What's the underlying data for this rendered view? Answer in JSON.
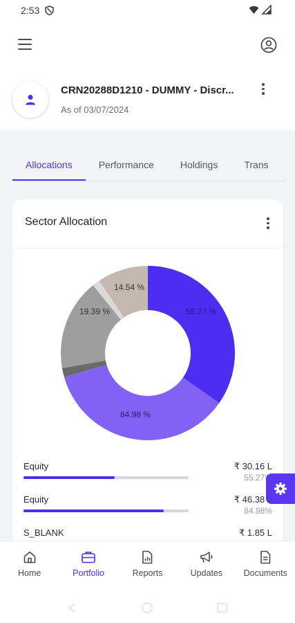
{
  "status_bar": {
    "time": "2:53"
  },
  "account": {
    "name": "CRN20288D1210 - DUMMY - Discr...",
    "as_of": "As of 03/07/2024"
  },
  "tabs": [
    {
      "label": "Allocations",
      "active": true
    },
    {
      "label": "Performance",
      "active": false
    },
    {
      "label": "Holdings",
      "active": false
    },
    {
      "label": "Trans",
      "active": false
    }
  ],
  "card": {
    "title": "Sector Allocation"
  },
  "chart_data": {
    "type": "pie",
    "variant": "donut",
    "slice_labels": [
      "55.27 %",
      "84.98 %",
      "19.39 %",
      "14.54 %"
    ],
    "colors": [
      "#4d2ef0",
      "#8461f5",
      "#9e9e9e",
      "#c4b8b0",
      "#6a6a6a",
      "#d9d9d9"
    ]
  },
  "allocations": [
    {
      "name": "Equity",
      "amount": "₹ 30.16 L",
      "percent": "55.27%",
      "fill": 0.5527
    },
    {
      "name": "Equity",
      "amount": "₹ 46.38 L",
      "percent": "84.98%",
      "fill": 0.8498
    },
    {
      "name": "S_BLANK",
      "amount": "₹ 1.85 L"
    }
  ],
  "nav": [
    {
      "label": "Home",
      "icon": "home-icon",
      "active": false
    },
    {
      "label": "Portfolio",
      "icon": "briefcase-icon",
      "active": true
    },
    {
      "label": "Reports",
      "icon": "report-icon",
      "active": false
    },
    {
      "label": "Updates",
      "icon": "megaphone-icon",
      "active": false
    },
    {
      "label": "Documents",
      "icon": "document-icon",
      "active": false
    }
  ],
  "colors": {
    "accent": "#4d2ef0",
    "background": "#f2f4f8"
  }
}
